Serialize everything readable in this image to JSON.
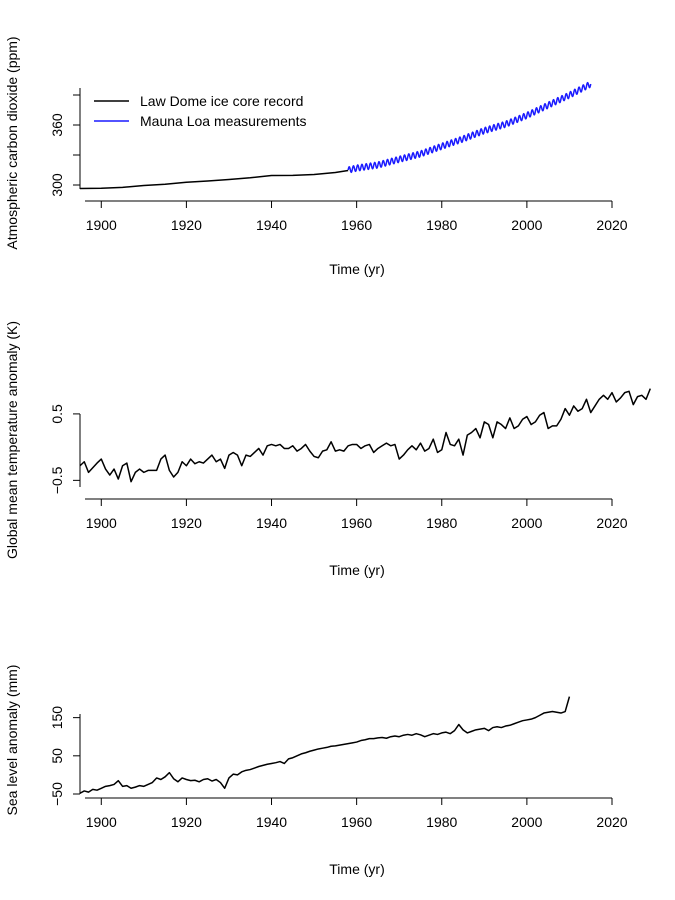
{
  "chart_data": [
    {
      "type": "line",
      "xlabel": "Time (yr)",
      "ylabel": "Atmospheric carbon dioxide (ppm)",
      "xlim": [
        1895,
        2020
      ],
      "ylim": [
        296,
        402
      ],
      "xticks": [
        1900,
        1920,
        1940,
        1960,
        1980,
        2000,
        2020
      ],
      "yticks": [
        300,
        330,
        360,
        390
      ],
      "ytick_labels": [
        "300",
        "",
        "360",
        ""
      ],
      "legend": {
        "position": "top-left"
      },
      "series": [
        {
          "name": "Law Dome ice core record",
          "color": "#000000",
          "x": [
            1895,
            1900,
            1905,
            1910,
            1915,
            1920,
            1925,
            1930,
            1935,
            1940,
            1945,
            1950,
            1955,
            1958
          ],
          "y": [
            296.5,
            296.8,
            297.6,
            299.5,
            300.7,
            302.8,
            304.0,
            305.5,
            307.2,
            309.5,
            309.6,
            310.5,
            312.5,
            314.5
          ]
        },
        {
          "name": "Mauna Loa measurements",
          "color": "#1a1aff",
          "seasonal_amplitude": 3,
          "x": [
            1958,
            1960,
            1965,
            1970,
            1975,
            1980,
            1985,
            1990,
            1995,
            2000,
            2005,
            2010,
            2015
          ],
          "y": [
            315.0,
            316.9,
            320.0,
            325.7,
            331.1,
            338.7,
            346.1,
            354.4,
            360.8,
            369.6,
            379.8,
            389.9,
            401.0
          ]
        }
      ]
    },
    {
      "type": "line",
      "xlabel": "Time (yr)",
      "ylabel": "Global mean temperature anomaly (K)",
      "xlim": [
        1895,
        2020
      ],
      "ylim": [
        -0.6,
        0.95
      ],
      "xticks": [
        1900,
        1920,
        1940,
        1960,
        1980,
        2000,
        2020
      ],
      "yticks": [
        -0.5,
        0.5
      ],
      "ytick_labels": [
        "-0.5",
        "0.5"
      ],
      "series": [
        {
          "name": "",
          "color": "#000000",
          "x_start": 1895,
          "x_step": 1,
          "y": [
            -0.28,
            -0.22,
            -0.38,
            -0.31,
            -0.24,
            -0.18,
            -0.33,
            -0.42,
            -0.33,
            -0.48,
            -0.28,
            -0.24,
            -0.52,
            -0.38,
            -0.33,
            -0.38,
            -0.35,
            -0.35,
            -0.35,
            -0.18,
            -0.12,
            -0.35,
            -0.45,
            -0.38,
            -0.22,
            -0.28,
            -0.18,
            -0.25,
            -0.22,
            -0.24,
            -0.18,
            -0.12,
            -0.22,
            -0.18,
            -0.32,
            -0.12,
            -0.08,
            -0.12,
            -0.28,
            -0.12,
            -0.14,
            -0.08,
            -0.02,
            -0.12,
            0.02,
            0.04,
            0.02,
            0.04,
            -0.02,
            -0.02,
            0.02,
            -0.06,
            -0.02,
            0.04,
            -0.06,
            -0.14,
            -0.16,
            -0.06,
            -0.04,
            0.08,
            -0.06,
            -0.04,
            -0.06,
            0.02,
            0.04,
            0.04,
            -0.02,
            0.02,
            0.04,
            -0.08,
            -0.02,
            0.02,
            0.06,
            0.02,
            0.04,
            -0.18,
            -0.12,
            -0.04,
            0.02,
            -0.04,
            0.06,
            -0.06,
            -0.02,
            0.12,
            -0.08,
            -0.04,
            0.22,
            0.04,
            0.02,
            0.12,
            -0.12,
            0.18,
            0.22,
            0.28,
            0.14,
            0.38,
            0.34,
            0.14,
            0.38,
            0.34,
            0.28,
            0.44,
            0.28,
            0.32,
            0.42,
            0.46,
            0.34,
            0.38,
            0.48,
            0.52,
            0.28,
            0.32,
            0.32,
            0.42,
            0.58,
            0.48,
            0.62,
            0.54,
            0.58,
            0.72,
            0.52,
            0.62,
            0.72,
            0.78,
            0.72,
            0.82,
            0.68,
            0.74,
            0.82,
            0.84,
            0.64,
            0.76,
            0.78,
            0.72,
            0.88
          ]
        }
      ]
    },
    {
      "type": "line",
      "xlabel": "Time (yr)",
      "ylabel": "Sea level anomaly (mm)",
      "xlim": [
        1895,
        2020
      ],
      "ylim": [
        -50,
        225
      ],
      "xticks": [
        1900,
        1920,
        1940,
        1960,
        1980,
        2000,
        2020
      ],
      "yticks": [
        -50,
        50,
        150
      ],
      "ytick_labels": [
        "-50",
        "50",
        "150"
      ],
      "series": [
        {
          "name": "",
          "color": "#000000",
          "x": [
            1895,
            1896,
            1897,
            1898,
            1899,
            1900,
            1901,
            1902,
            1903,
            1904,
            1905,
            1906,
            1907,
            1908,
            1909,
            1910,
            1911,
            1912,
            1913,
            1914,
            1915,
            1916,
            1917,
            1918,
            1919,
            1920,
            1921,
            1922,
            1923,
            1924,
            1925,
            1926,
            1927,
            1928,
            1929,
            1930,
            1931,
            1932,
            1933,
            1934,
            1935,
            1936,
            1937,
            1938,
            1939,
            1940,
            1941,
            1942,
            1943,
            1944,
            1945,
            1946,
            1947,
            1948,
            1949,
            1950,
            1951,
            1952,
            1953,
            1954,
            1955,
            1956,
            1957,
            1958,
            1959,
            1960,
            1961,
            1962,
            1963,
            1964,
            1965,
            1966,
            1967,
            1968,
            1969,
            1970,
            1971,
            1972,
            1973,
            1974,
            1975,
            1976,
            1977,
            1978,
            1979,
            1980,
            1981,
            1982,
            1983,
            1984,
            1985,
            1986,
            1987,
            1988,
            1989,
            1990,
            1991,
            1992,
            1993,
            1994,
            1995,
            1996,
            1997,
            1998,
            1999,
            2000,
            2001,
            2002,
            2003,
            2004,
            2005,
            2006,
            2007,
            2008,
            2009,
            2010
          ],
          "y": [
            -48,
            -42,
            -45,
            -38,
            -40,
            -35,
            -30,
            -28,
            -25,
            -15,
            -30,
            -28,
            -35,
            -32,
            -28,
            -30,
            -25,
            -20,
            -8,
            -12,
            -5,
            6,
            -10,
            -18,
            -8,
            -12,
            -15,
            -14,
            -18,
            -12,
            -10,
            -16,
            -12,
            -20,
            -35,
            -8,
            2,
            0,
            8,
            12,
            14,
            18,
            22,
            25,
            28,
            30,
            32,
            35,
            30,
            42,
            45,
            50,
            55,
            58,
            62,
            65,
            68,
            70,
            72,
            75,
            76,
            78,
            80,
            82,
            84,
            86,
            90,
            92,
            95,
            95,
            97,
            98,
            96,
            100,
            102,
            100,
            104,
            106,
            104,
            108,
            105,
            100,
            104,
            108,
            106,
            110,
            112,
            108,
            116,
            132,
            118,
            110,
            114,
            118,
            120,
            122,
            116,
            124,
            126,
            124,
            128,
            130,
            134,
            138,
            142,
            144,
            146,
            150,
            156,
            162,
            164,
            166,
            164,
            162,
            166,
            205
          ]
        }
      ]
    }
  ]
}
